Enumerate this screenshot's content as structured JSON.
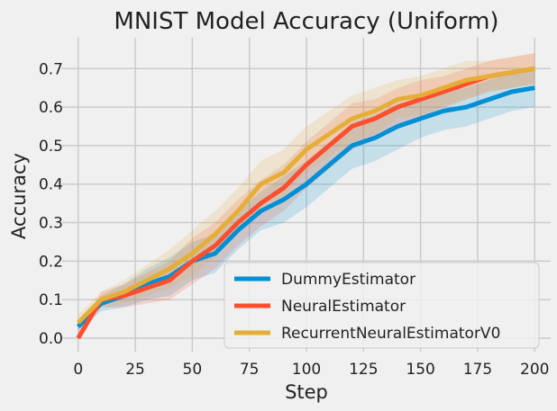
{
  "chart_data": {
    "type": "line",
    "title": "MNIST Model Accuracy (Uniform)",
    "xlabel": "Step",
    "ylabel": "Accuracy",
    "xlim": [
      -7,
      207
    ],
    "ylim": [
      -0.035,
      0.78
    ],
    "grid": true,
    "legend_position": "lower-right",
    "x_ticks": [
      0,
      25,
      50,
      75,
      100,
      125,
      150,
      175,
      200
    ],
    "y_ticks": [
      0.0,
      0.1,
      0.2,
      0.3,
      0.4,
      0.5,
      0.6,
      0.7
    ],
    "y_tick_labels": [
      "0.0",
      "0.1",
      "0.2",
      "0.3",
      "0.4",
      "0.5",
      "0.6",
      "0.7"
    ],
    "x": [
      0,
      10,
      20,
      30,
      40,
      50,
      60,
      70,
      80,
      90,
      100,
      110,
      120,
      130,
      140,
      150,
      160,
      170,
      180,
      190,
      200
    ],
    "series": [
      {
        "name": "DummyEstimator",
        "color": "#008fd5",
        "values": [
          0.03,
          0.09,
          0.11,
          0.14,
          0.16,
          0.2,
          0.22,
          0.28,
          0.33,
          0.36,
          0.4,
          0.45,
          0.5,
          0.52,
          0.55,
          0.57,
          0.59,
          0.6,
          0.62,
          0.64,
          0.65
        ],
        "lower": [
          0.02,
          0.07,
          0.08,
          0.1,
          0.11,
          0.15,
          0.17,
          0.23,
          0.28,
          0.3,
          0.34,
          0.39,
          0.44,
          0.46,
          0.49,
          0.52,
          0.54,
          0.55,
          0.57,
          0.59,
          0.6
        ],
        "upper": [
          0.04,
          0.11,
          0.14,
          0.18,
          0.21,
          0.25,
          0.27,
          0.33,
          0.38,
          0.42,
          0.46,
          0.51,
          0.56,
          0.58,
          0.61,
          0.62,
          0.64,
          0.65,
          0.67,
          0.69,
          0.7
        ]
      },
      {
        "name": "NeuralEstimator",
        "color": "#fc4f30",
        "values": [
          0.0,
          0.1,
          0.11,
          0.13,
          0.15,
          0.2,
          0.24,
          0.3,
          0.35,
          0.39,
          0.45,
          0.5,
          0.55,
          0.57,
          0.6,
          0.62,
          0.64,
          0.66,
          0.68,
          0.69,
          0.7
        ],
        "lower": [
          0.0,
          0.08,
          0.08,
          0.09,
          0.1,
          0.14,
          0.18,
          0.24,
          0.29,
          0.33,
          0.39,
          0.44,
          0.49,
          0.52,
          0.55,
          0.57,
          0.6,
          0.62,
          0.64,
          0.65,
          0.66
        ],
        "upper": [
          0.02,
          0.12,
          0.14,
          0.17,
          0.2,
          0.26,
          0.3,
          0.36,
          0.41,
          0.45,
          0.51,
          0.56,
          0.61,
          0.62,
          0.65,
          0.67,
          0.68,
          0.7,
          0.72,
          0.73,
          0.74
        ]
      },
      {
        "name": "RecurrentNeuralEstimatorV0",
        "color": "#e5ae38",
        "values": [
          0.04,
          0.1,
          0.12,
          0.15,
          0.18,
          0.22,
          0.27,
          0.33,
          0.4,
          0.43,
          0.49,
          0.53,
          0.57,
          0.59,
          0.62,
          0.63,
          0.65,
          0.67,
          0.68,
          0.69,
          0.7
        ],
        "lower": [
          0.02,
          0.08,
          0.09,
          0.11,
          0.13,
          0.16,
          0.21,
          0.27,
          0.34,
          0.37,
          0.43,
          0.47,
          0.51,
          0.53,
          0.57,
          0.58,
          0.6,
          0.62,
          0.64,
          0.65,
          0.66
        ],
        "upper": [
          0.06,
          0.12,
          0.15,
          0.19,
          0.23,
          0.28,
          0.33,
          0.39,
          0.46,
          0.49,
          0.55,
          0.59,
          0.63,
          0.65,
          0.67,
          0.68,
          0.7,
          0.72,
          0.72,
          0.73,
          0.74
        ]
      }
    ]
  }
}
